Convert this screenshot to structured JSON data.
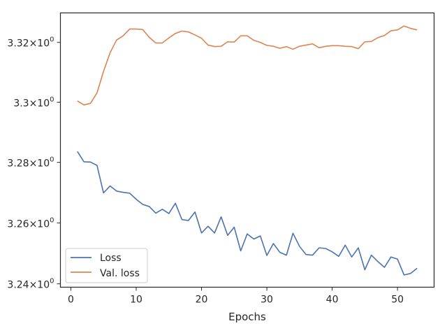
{
  "chart_data": {
    "type": "line",
    "title": "",
    "xlabel": "Epochs",
    "ylabel": "",
    "y_scale": "log",
    "xlim": [
      -1.6,
      55.6
    ],
    "ylim": [
      3.2389,
      3.3299
    ],
    "grid": false,
    "legend_position": "lower-left",
    "x_ticks": [
      0,
      10,
      20,
      30,
      40,
      50
    ],
    "x_tick_labels": [
      "0",
      "10",
      "20",
      "30",
      "40",
      "50"
    ],
    "y_ticks": [
      3.24,
      3.26,
      3.28,
      3.3,
      3.32
    ],
    "y_tick_labels": [
      "3.24",
      "3.26",
      "3.28",
      "3.3",
      "3.32"
    ],
    "y_tick_suffix": "×10",
    "y_tick_exponent": "0",
    "x": [
      1,
      2,
      3,
      4,
      5,
      6,
      7,
      8,
      9,
      10,
      11,
      12,
      13,
      14,
      15,
      16,
      17,
      18,
      19,
      20,
      21,
      22,
      23,
      24,
      25,
      26,
      27,
      28,
      29,
      30,
      31,
      32,
      33,
      34,
      35,
      36,
      37,
      38,
      39,
      40,
      41,
      42,
      43,
      44,
      45,
      46,
      47,
      48,
      49,
      50,
      51,
      52,
      53
    ],
    "series": [
      {
        "name": "Loss",
        "color": "#4c72b0",
        "values": [
          3.2836,
          3.2802,
          3.2801,
          3.279,
          3.2699,
          3.2722,
          3.2705,
          3.2701,
          3.2698,
          3.2678,
          3.2661,
          3.2654,
          3.2632,
          3.2645,
          3.2631,
          3.2665,
          3.2611,
          3.2608,
          3.2636,
          3.2567,
          3.2589,
          3.2567,
          3.262,
          3.2559,
          3.2586,
          3.2508,
          3.2564,
          3.2547,
          3.2557,
          3.2493,
          3.2532,
          3.2503,
          3.2494,
          3.2566,
          3.2523,
          3.2496,
          3.2494,
          3.2518,
          3.2516,
          3.2505,
          3.249,
          3.2527,
          3.2488,
          3.2518,
          3.2446,
          3.2494,
          3.2473,
          3.2454,
          3.2488,
          3.2481,
          3.2429,
          3.2434,
          3.2451
        ]
      },
      {
        "name": "Val. loss",
        "color": "#dd8452",
        "values": [
          3.3004,
          3.2991,
          3.2996,
          3.3031,
          3.3103,
          3.3165,
          3.3208,
          3.3222,
          3.3245,
          3.3245,
          3.3243,
          3.3217,
          3.3198,
          3.3198,
          3.3215,
          3.323,
          3.3238,
          3.3235,
          3.3225,
          3.3214,
          3.3191,
          3.3186,
          3.3187,
          3.3202,
          3.3201,
          3.3222,
          3.3222,
          3.3207,
          3.32,
          3.319,
          3.3187,
          3.318,
          3.3186,
          3.3177,
          3.3187,
          3.3191,
          3.3195,
          3.3182,
          3.3187,
          3.3189,
          3.3189,
          3.3187,
          3.3186,
          3.3179,
          3.3202,
          3.3203,
          3.3216,
          3.3223,
          3.3239,
          3.3242,
          3.3255,
          3.3247,
          3.3242
        ]
      }
    ]
  }
}
